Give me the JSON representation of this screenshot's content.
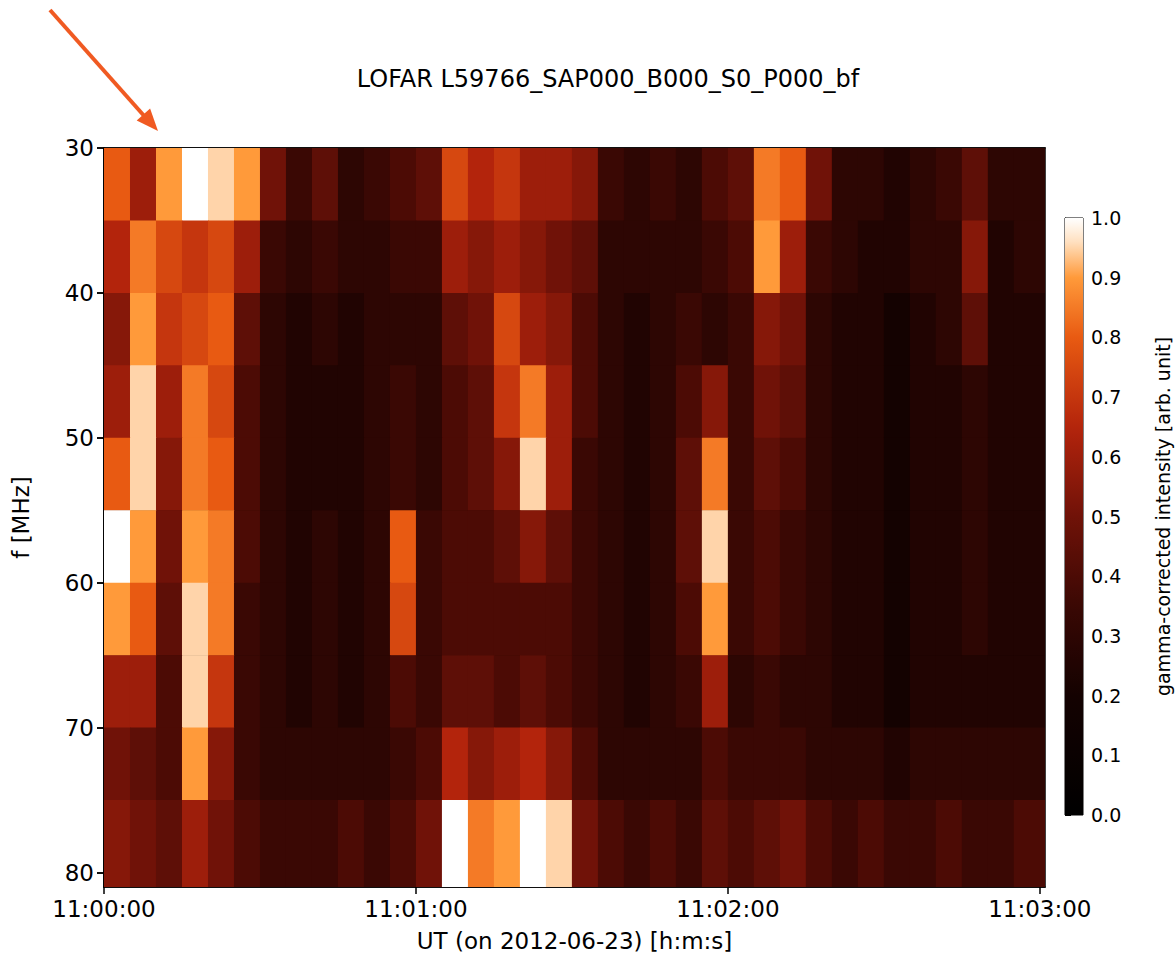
{
  "chart_data": {
    "type": "heatmap",
    "title": "LOFAR L59766_SAP000_B000_S0_P000_bf",
    "x_label": "UT (on 2012-06-23) [h:m:s]",
    "y_label": "f [MHz]",
    "xlim": [
      0,
      181
    ],
    "xticks": [
      {
        "value": 0,
        "label": "11:00:00"
      },
      {
        "value": 60,
        "label": "11:01:00"
      },
      {
        "value": 120,
        "label": "11:02:00"
      },
      {
        "value": 180,
        "label": "11:03:00"
      }
    ],
    "ylim": [
      30,
      81
    ],
    "yticks": [
      30,
      40,
      50,
      60,
      70,
      80
    ],
    "grid": false,
    "x_bins": [
      0,
      5,
      10,
      15,
      20,
      25,
      30,
      35,
      40,
      45,
      50,
      55,
      60,
      65,
      70,
      75,
      80,
      85,
      90,
      95,
      100,
      105,
      110,
      115,
      120,
      125,
      130,
      135,
      140,
      145,
      150,
      155,
      160,
      165,
      170,
      175,
      181
    ],
    "y_bins": [
      30,
      35,
      40,
      45,
      50,
      55,
      60,
      65,
      70,
      75,
      81
    ],
    "values": [
      [
        0.8,
        0.6,
        0.9,
        1.0,
        0.95,
        0.9,
        0.5,
        0.35,
        0.45,
        0.3,
        0.35,
        0.4,
        0.45,
        0.75,
        0.65,
        0.7,
        0.6,
        0.6,
        0.55,
        0.35,
        0.3,
        0.35,
        0.3,
        0.4,
        0.45,
        0.85,
        0.8,
        0.5,
        0.3,
        0.3,
        0.25,
        0.3,
        0.35,
        0.45,
        0.3,
        0.3
      ],
      [
        0.65,
        0.85,
        0.75,
        0.7,
        0.75,
        0.6,
        0.35,
        0.3,
        0.35,
        0.3,
        0.3,
        0.35,
        0.35,
        0.6,
        0.55,
        0.6,
        0.55,
        0.5,
        0.45,
        0.3,
        0.3,
        0.3,
        0.3,
        0.35,
        0.4,
        0.9,
        0.6,
        0.35,
        0.3,
        0.25,
        0.25,
        0.3,
        0.3,
        0.55,
        0.25,
        0.3
      ],
      [
        0.55,
        0.9,
        0.7,
        0.75,
        0.8,
        0.45,
        0.3,
        0.25,
        0.3,
        0.25,
        0.3,
        0.3,
        0.3,
        0.45,
        0.5,
        0.75,
        0.6,
        0.55,
        0.4,
        0.3,
        0.25,
        0.3,
        0.35,
        0.3,
        0.35,
        0.55,
        0.5,
        0.3,
        0.25,
        0.25,
        0.2,
        0.25,
        0.3,
        0.45,
        0.25,
        0.25
      ],
      [
        0.6,
        0.95,
        0.6,
        0.85,
        0.75,
        0.4,
        0.3,
        0.25,
        0.25,
        0.25,
        0.3,
        0.35,
        0.3,
        0.4,
        0.45,
        0.7,
        0.85,
        0.6,
        0.4,
        0.3,
        0.25,
        0.3,
        0.4,
        0.55,
        0.35,
        0.5,
        0.45,
        0.3,
        0.25,
        0.25,
        0.2,
        0.25,
        0.25,
        0.3,
        0.25,
        0.25
      ],
      [
        0.8,
        0.95,
        0.55,
        0.85,
        0.8,
        0.4,
        0.3,
        0.25,
        0.25,
        0.25,
        0.3,
        0.35,
        0.3,
        0.4,
        0.45,
        0.55,
        0.95,
        0.6,
        0.35,
        0.3,
        0.25,
        0.3,
        0.45,
        0.85,
        0.35,
        0.45,
        0.4,
        0.3,
        0.25,
        0.25,
        0.2,
        0.25,
        0.25,
        0.3,
        0.25,
        0.25
      ],
      [
        1.0,
        0.9,
        0.5,
        0.9,
        0.85,
        0.4,
        0.3,
        0.25,
        0.3,
        0.25,
        0.3,
        0.8,
        0.35,
        0.4,
        0.4,
        0.45,
        0.55,
        0.45,
        0.35,
        0.3,
        0.25,
        0.3,
        0.45,
        0.95,
        0.35,
        0.4,
        0.35,
        0.3,
        0.25,
        0.25,
        0.2,
        0.25,
        0.25,
        0.3,
        0.25,
        0.25
      ],
      [
        0.9,
        0.8,
        0.45,
        0.95,
        0.85,
        0.35,
        0.3,
        0.25,
        0.3,
        0.25,
        0.3,
        0.75,
        0.35,
        0.4,
        0.4,
        0.4,
        0.4,
        0.4,
        0.35,
        0.3,
        0.25,
        0.3,
        0.4,
        0.9,
        0.35,
        0.4,
        0.35,
        0.3,
        0.25,
        0.25,
        0.2,
        0.25,
        0.25,
        0.3,
        0.25,
        0.25
      ],
      [
        0.6,
        0.6,
        0.4,
        0.95,
        0.7,
        0.35,
        0.3,
        0.25,
        0.3,
        0.25,
        0.3,
        0.4,
        0.35,
        0.45,
        0.45,
        0.4,
        0.45,
        0.4,
        0.35,
        0.3,
        0.25,
        0.3,
        0.35,
        0.6,
        0.3,
        0.35,
        0.3,
        0.3,
        0.25,
        0.25,
        0.2,
        0.25,
        0.25,
        0.25,
        0.25,
        0.25
      ],
      [
        0.5,
        0.45,
        0.4,
        0.9,
        0.55,
        0.35,
        0.3,
        0.3,
        0.3,
        0.3,
        0.3,
        0.35,
        0.4,
        0.65,
        0.55,
        0.6,
        0.65,
        0.55,
        0.4,
        0.3,
        0.3,
        0.3,
        0.3,
        0.4,
        0.35,
        0.35,
        0.35,
        0.3,
        0.3,
        0.3,
        0.25,
        0.3,
        0.3,
        0.3,
        0.3,
        0.3
      ],
      [
        0.55,
        0.5,
        0.45,
        0.6,
        0.5,
        0.4,
        0.35,
        0.35,
        0.35,
        0.4,
        0.35,
        0.4,
        0.5,
        1.0,
        0.85,
        0.9,
        1.0,
        0.95,
        0.5,
        0.4,
        0.35,
        0.4,
        0.35,
        0.45,
        0.4,
        0.45,
        0.5,
        0.4,
        0.35,
        0.4,
        0.35,
        0.35,
        0.4,
        0.35,
        0.35,
        0.4
      ]
    ],
    "colorbar_label": "gamma-corrected intensity [arb. unit]",
    "colorbar_range": [
      0,
      1
    ],
    "colorbar_ticks": [
      {
        "value": 0,
        "label": "0.0"
      },
      {
        "value": 0.1,
        "label": "0.1"
      },
      {
        "value": 0.2,
        "label": "0.2"
      },
      {
        "value": 0.3,
        "label": "0.3"
      },
      {
        "value": 0.4,
        "label": "0.4"
      },
      {
        "value": 0.5,
        "label": "0.5"
      },
      {
        "value": 0.6,
        "label": "0.6"
      },
      {
        "value": 0.7,
        "label": "0.7"
      },
      {
        "value": 0.8,
        "label": "0.8"
      },
      {
        "value": 0.9,
        "label": "0.9"
      },
      {
        "value": 1,
        "label": "1.0"
      }
    ]
  }
}
